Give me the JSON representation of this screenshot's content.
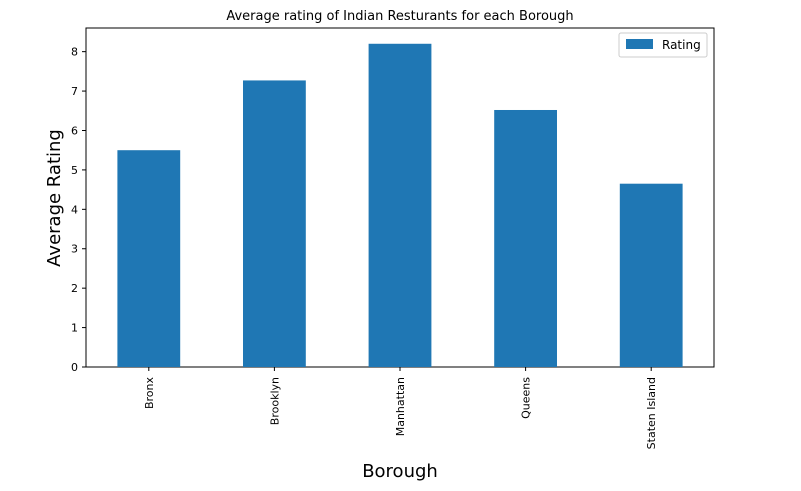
{
  "chart_data": {
    "type": "bar",
    "title": "Average rating of Indian Resturants for each Borough",
    "xlabel": "Borough",
    "ylabel": "Average Rating",
    "categories": [
      "Bronx",
      "Brooklyn",
      "Manhattan",
      "Queens",
      "Staten Island"
    ],
    "series": [
      {
        "name": "Rating",
        "values": [
          5.5,
          7.27,
          8.2,
          6.52,
          4.65
        ],
        "color": "#1f77b4"
      }
    ],
    "ylim": [
      0,
      8.6
    ],
    "yticks": [
      0,
      1,
      2,
      3,
      4,
      5,
      6,
      7,
      8
    ],
    "grid": false,
    "legend_position": "top-right"
  }
}
